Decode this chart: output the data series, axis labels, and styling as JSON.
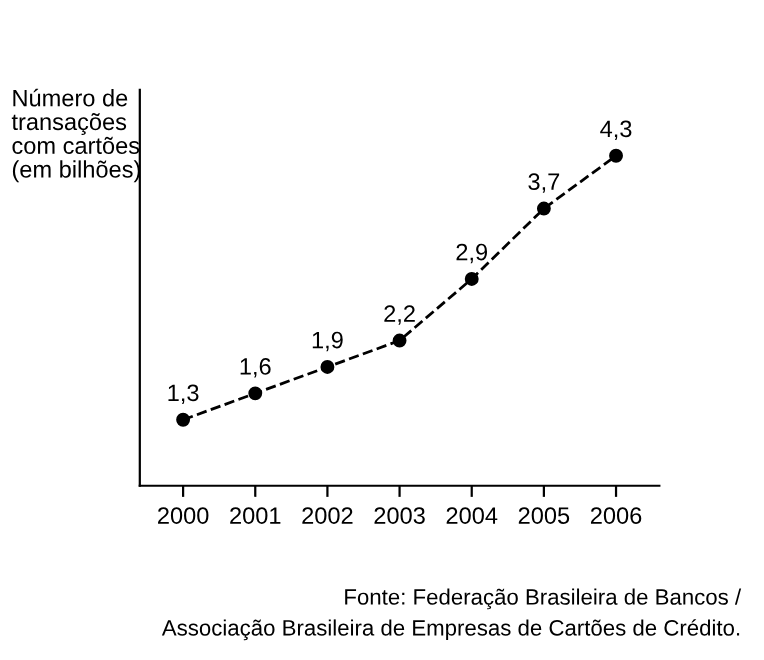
{
  "chart_data": {
    "type": "line",
    "ylabel": "Número de\ntransações\ncom cartões\n(em bilhões)",
    "categories": [
      "2000",
      "2001",
      "2002",
      "2003",
      "2004",
      "2005",
      "2006"
    ],
    "series": [
      {
        "color": "#000000",
        "values": [
          1.3,
          1.6,
          1.9,
          2.2,
          2.9,
          3.7,
          4.3
        ],
        "value_labels": [
          "1,3",
          "1,6",
          "1,9",
          "2,2",
          "2,9",
          "3,7",
          "4,3"
        ]
      }
    ],
    "marker": "circle",
    "line_style": "dashed",
    "grid": false,
    "legend": false,
    "annotations": [
      "Fonte: Federação Brasileira de Bancos /\nAssociação Brasileira de Empresas de Cartões de Crédito."
    ]
  }
}
